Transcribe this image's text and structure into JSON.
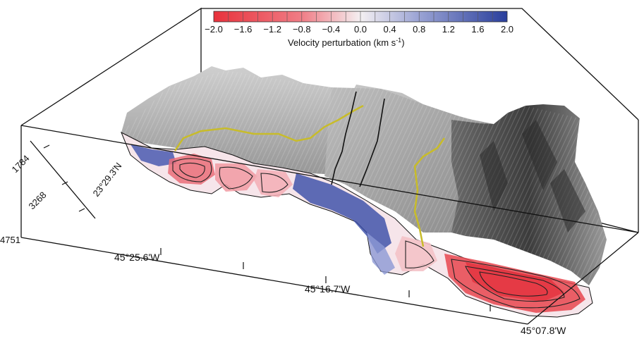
{
  "colorbar": {
    "title": "Velocity perturbation (km s",
    "title_exp": "-1",
    "title_close": ")",
    "ticks": [
      "−2.0",
      "−1.6",
      "−1.2",
      "−0.8",
      "−0.4",
      "0.0",
      "0.4",
      "0.8",
      "1.2",
      "1.6",
      "2.0"
    ],
    "min": -2.0,
    "max": 2.0,
    "colors": {
      "negative_end": "#e8323c",
      "zero": "#f4f0f2",
      "positive_end": "#2a3f9c"
    }
  },
  "depth_axis": {
    "labels": [
      "1784",
      "3268",
      "4751"
    ]
  },
  "latitude_label": "23°29.3'N",
  "longitude_axis": {
    "labels": [
      "45°25.6'W",
      "45°16.7'W",
      "45°07.8'W"
    ]
  },
  "colors": {
    "fault_trace": "#c8bc2a",
    "boundary_line": "#111111",
    "box": "#111111"
  }
}
